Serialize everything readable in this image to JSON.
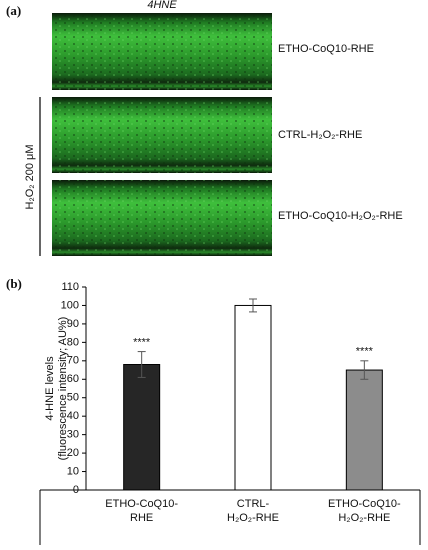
{
  "panel_a": {
    "label": "(a)",
    "stain": "4HNE",
    "treatment": "H₂O₂ 200 μM",
    "images": [
      {
        "label": "ETHO-CoQ10-RHE"
      },
      {
        "label": "CTRL-H₂O₂-RHE"
      },
      {
        "label": "ETHO-CoQ10-H₂O₂-RHE"
      }
    ]
  },
  "panel_b": {
    "label": "(b)"
  },
  "chart_data": {
    "type": "bar",
    "y_label": [
      "4-HNE levels",
      "(fluorescence intensity; AU%)"
    ],
    "categories": [
      [
        "ETHO-CoQ10-",
        "RHE"
      ],
      [
        "CTRL-",
        "H₂O₂-RHE"
      ],
      [
        "ETHO-CoQ10-",
        "H₂O₂-RHE"
      ]
    ],
    "values": [
      68,
      100,
      65
    ],
    "errors": [
      7,
      3.5,
      5
    ],
    "colors": [
      "#262626",
      "#ffffff",
      "#8c8c8c"
    ],
    "significance": [
      "****",
      null,
      "****"
    ],
    "ylim": [
      0,
      110
    ],
    "yticks": [
      0,
      10,
      20,
      30,
      40,
      50,
      60,
      70,
      80,
      90,
      100,
      110
    ],
    "grid": false
  }
}
